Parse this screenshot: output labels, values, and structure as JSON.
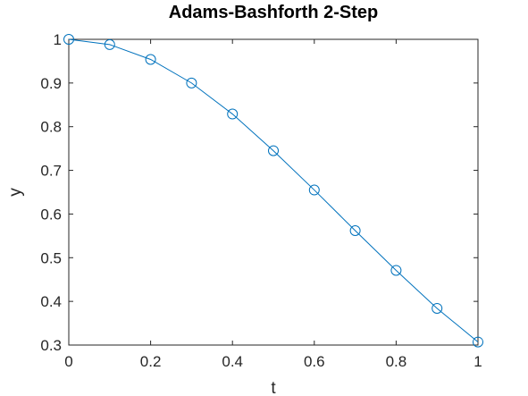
{
  "chart_data": {
    "type": "line",
    "title": "Adams-Bashforth 2-Step",
    "xlabel": "t",
    "ylabel": "y",
    "xlim": [
      0,
      1
    ],
    "ylim": [
      0.3,
      1
    ],
    "xticks": [
      0,
      0.2,
      0.4,
      0.6,
      0.8,
      1
    ],
    "xtick_labels": [
      "0",
      "0.2",
      "0.4",
      "0.6",
      "0.8",
      "1"
    ],
    "yticks": [
      0.3,
      0.4,
      0.5,
      0.6,
      0.7,
      0.8,
      0.9,
      1
    ],
    "ytick_labels": [
      "0.3",
      "0.4",
      "0.5",
      "0.6",
      "0.7",
      "0.8",
      "0.9",
      "1"
    ],
    "grid": false,
    "box": true,
    "series": [
      {
        "marker": "circle",
        "color": "#0072bd",
        "x": [
          0,
          0.1,
          0.2,
          0.3,
          0.4,
          0.5,
          0.6,
          0.7,
          0.8,
          0.9,
          1.0
        ],
        "y": [
          1.0,
          0.988,
          0.954,
          0.9,
          0.829,
          0.745,
          0.655,
          0.562,
          0.471,
          0.384,
          0.307
        ]
      }
    ]
  }
}
